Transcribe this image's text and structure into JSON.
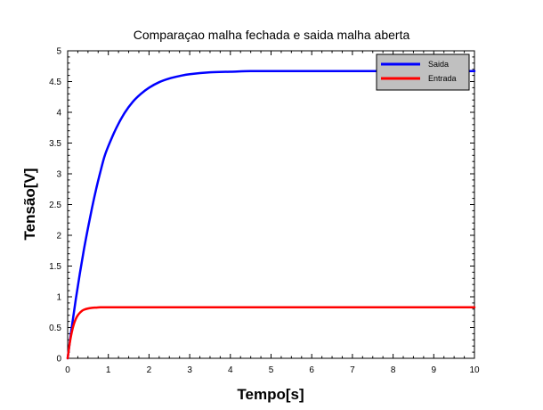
{
  "chart_data": {
    "type": "line",
    "title": "Comparaçao malha fechada e saida malha aberta",
    "xlabel": "Tempo[s]",
    "ylabel": "Tensão[V]",
    "xlim": [
      0,
      10
    ],
    "ylim": [
      0,
      5
    ],
    "x_ticks": [
      "0",
      "1",
      "2",
      "3",
      "4",
      "5",
      "6",
      "7",
      "8",
      "9",
      "10"
    ],
    "y_ticks": [
      "0",
      "0.5",
      "1",
      "1.5",
      "2",
      "2.5",
      "3",
      "3.5",
      "4",
      "4.5",
      "5"
    ],
    "grid": false,
    "legend_position": "top-right",
    "series": [
      {
        "name": "Saida",
        "color": "#0000ff",
        "x": [
          0,
          0.1,
          0.2,
          0.3,
          0.4,
          0.5,
          0.6,
          0.7,
          0.8,
          0.9,
          1.0,
          1.2,
          1.4,
          1.6,
          1.8,
          2.0,
          2.25,
          2.5,
          2.75,
          3.0,
          3.5,
          4.0,
          4.5,
          5.0,
          5.5,
          6.0,
          7.0,
          8.0,
          9.0,
          10.0
        ],
        "y": [
          0,
          0.5,
          0.96,
          1.38,
          1.77,
          2.12,
          2.45,
          2.75,
          3.02,
          3.27,
          3.45,
          3.75,
          3.99,
          4.17,
          4.3,
          4.4,
          4.49,
          4.55,
          4.59,
          4.62,
          4.65,
          4.66,
          4.67,
          4.67,
          4.67,
          4.67,
          4.67,
          4.67,
          4.67,
          4.67
        ]
      },
      {
        "name": "Entrada",
        "color": "#ff0000",
        "x": [
          0,
          0.05,
          0.1,
          0.15,
          0.2,
          0.25,
          0.3,
          0.35,
          0.4,
          0.5,
          0.6,
          0.7,
          0.8,
          1.0,
          2.0,
          4.0,
          6.0,
          8.0,
          10.0
        ],
        "y": [
          0,
          0.24,
          0.42,
          0.55,
          0.64,
          0.7,
          0.74,
          0.77,
          0.79,
          0.81,
          0.82,
          0.825,
          0.83,
          0.83,
          0.83,
          0.83,
          0.83,
          0.83,
          0.83
        ]
      }
    ]
  }
}
